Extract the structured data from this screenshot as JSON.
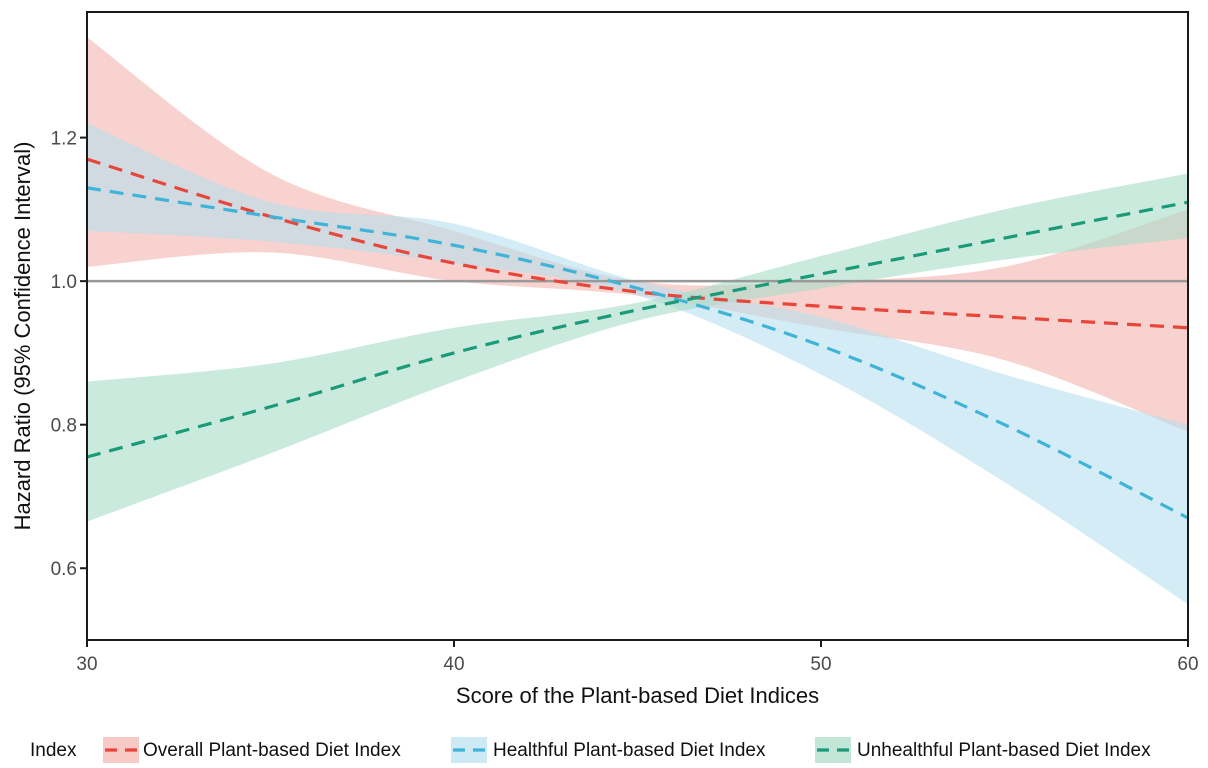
{
  "chart_data": {
    "type": "line",
    "xlabel": "Score of the Plant-based Diet Indices",
    "ylabel": "Hazard Ratio (95% Confidence Interval)",
    "xlim": [
      30,
      60
    ],
    "ylim": [
      0.5,
      1.375
    ],
    "x_ticks": [
      30,
      40,
      50,
      60
    ],
    "x_tick_labels": [
      "30",
      "40",
      "50",
      "60"
    ],
    "y_ticks": [
      0.6,
      0.8,
      1.0,
      1.2
    ],
    "y_tick_labels": [
      "0.6",
      "0.8",
      "1.0",
      "1.2"
    ],
    "reference_line": 1.0,
    "grid": false,
    "legend": {
      "position": "bottom",
      "title": "Index"
    },
    "x": [
      30,
      35,
      40,
      45,
      50,
      55,
      60
    ],
    "series": [
      {
        "name": "Overall Plant-based Diet Index",
        "color": "#e8463a",
        "band_color": "#f4b4ae",
        "values": [
          1.17,
          1.09,
          1.025,
          0.985,
          0.965,
          0.95,
          0.935
        ],
        "lower": [
          1.02,
          1.04,
          1.0,
          0.98,
          0.935,
          0.89,
          0.79
        ],
        "upper": [
          1.34,
          1.15,
          1.07,
          1.0,
          1.0,
          1.02,
          1.1
        ]
      },
      {
        "name": "Healthful Plant-based Diet Index",
        "color": "#3fb3d8",
        "band_color": "#b7e0ef",
        "values": [
          1.13,
          1.09,
          1.05,
          0.99,
          0.91,
          0.8,
          0.67
        ],
        "lower": [
          1.07,
          1.055,
          1.025,
          0.98,
          0.87,
          0.72,
          0.55
        ],
        "upper": [
          1.22,
          1.11,
          1.08,
          1.0,
          0.95,
          0.87,
          0.8
        ]
      },
      {
        "name": "Unhealthful Plant-based Diet Index",
        "color": "#1a9a78",
        "band_color": "#a8dcc8",
        "values": [
          0.755,
          0.825,
          0.9,
          0.96,
          1.01,
          1.06,
          1.11
        ],
        "lower": [
          0.665,
          0.76,
          0.86,
          0.945,
          0.99,
          1.03,
          1.06
        ],
        "upper": [
          0.86,
          0.885,
          0.935,
          0.97,
          1.035,
          1.1,
          1.15
        ]
      }
    ]
  },
  "colors": {
    "axis": "#1a1a1a",
    "reference_line": "#999999"
  }
}
